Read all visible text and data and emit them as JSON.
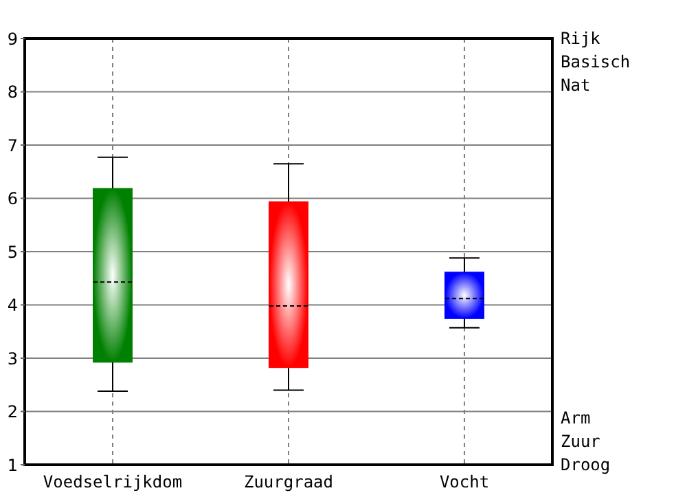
{
  "chart_data": {
    "type": "box",
    "categories": [
      "Voedselrijkdom",
      "Zuurgraad",
      "Vocht"
    ],
    "colors": [
      "#008000",
      "#ff0000",
      "#0000ff"
    ],
    "boxes": [
      {
        "low": 2.38,
        "q1": 2.93,
        "median": 4.43,
        "q3": 6.18,
        "high": 6.77
      },
      {
        "low": 2.4,
        "q1": 2.83,
        "median": 3.98,
        "q3": 5.93,
        "high": 6.65
      },
      {
        "low": 3.57,
        "q1": 3.75,
        "median": 4.12,
        "q3": 4.61,
        "high": 4.88
      }
    ],
    "ylim": [
      1,
      9
    ],
    "yticks": [
      1,
      2,
      3,
      4,
      5,
      6,
      7,
      8,
      9
    ],
    "grid": true,
    "annotations": [
      "Rijk",
      "Basisch",
      "Nat",
      "Arm",
      "Zuur",
      "Droog"
    ]
  }
}
